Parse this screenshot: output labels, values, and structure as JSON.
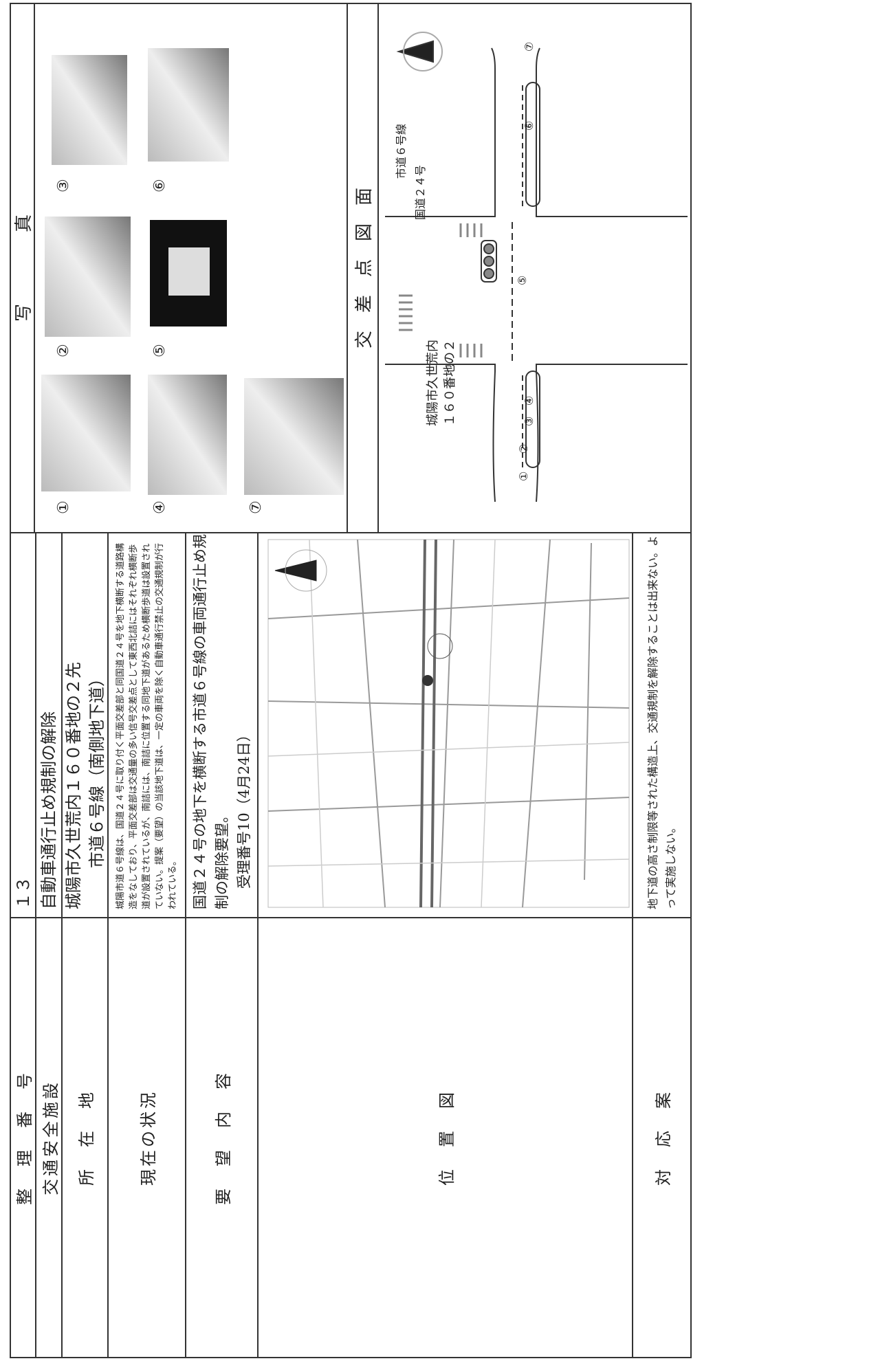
{
  "rows": [
    {
      "label": "整　理　番　号",
      "lines": [
        "１３"
      ]
    },
    {
      "label": "交通安全施設",
      "lines": [
        "自動車通行止め規制の解除"
      ]
    },
    {
      "label": "所　在　地",
      "lines": [
        "城陽市久世荒内１６０番地の２先",
        "市道６号線（南側地下道）"
      ]
    },
    {
      "label": "現在の状況",
      "lines": [
        "城陽市道６号線は、国道２４号に取り付く平面交差部と同国道２４号を地下横断する道路構造をなしており、平面交差部は交通量の多い信号交差点として東西北詰にはそれぞれ横断歩道が設置されているが、南詰には、南詰に位置する同地下道があるため横断歩道は設置されていない。提案（要望）の当該地下道は、一定の車両を除く自動車通行禁止の交通規制が行われている。"
      ]
    },
    {
      "label": "要　望　内　容",
      "lines": [
        "国道２４号の地下を横断する市道６号線の車両通行止め規制の解除要望。",
        "受理番号10（4月24日）"
      ]
    },
    {
      "label": "位　置　図",
      "lines": []
    },
    {
      "label": "対　応　案",
      "lines": [
        "地下道の高さ制限等された構造上、交通規制を解除することは出来ない。よって実施しない。"
      ]
    }
  ],
  "photos": {
    "header": "写　　　　真",
    "labels": [
      "①",
      "②",
      "③",
      "④",
      "⑤",
      "⑥",
      "⑦"
    ]
  },
  "diagram": {
    "header": "交　差　点　図　面",
    "road": "国道２４号",
    "side_road": "市道６号線",
    "place": [
      "城陽市久世荒内",
      "１６０番地の２"
    ],
    "points": [
      "①",
      "②",
      "③",
      "④",
      "⑤",
      "⑥",
      "⑦"
    ]
  }
}
